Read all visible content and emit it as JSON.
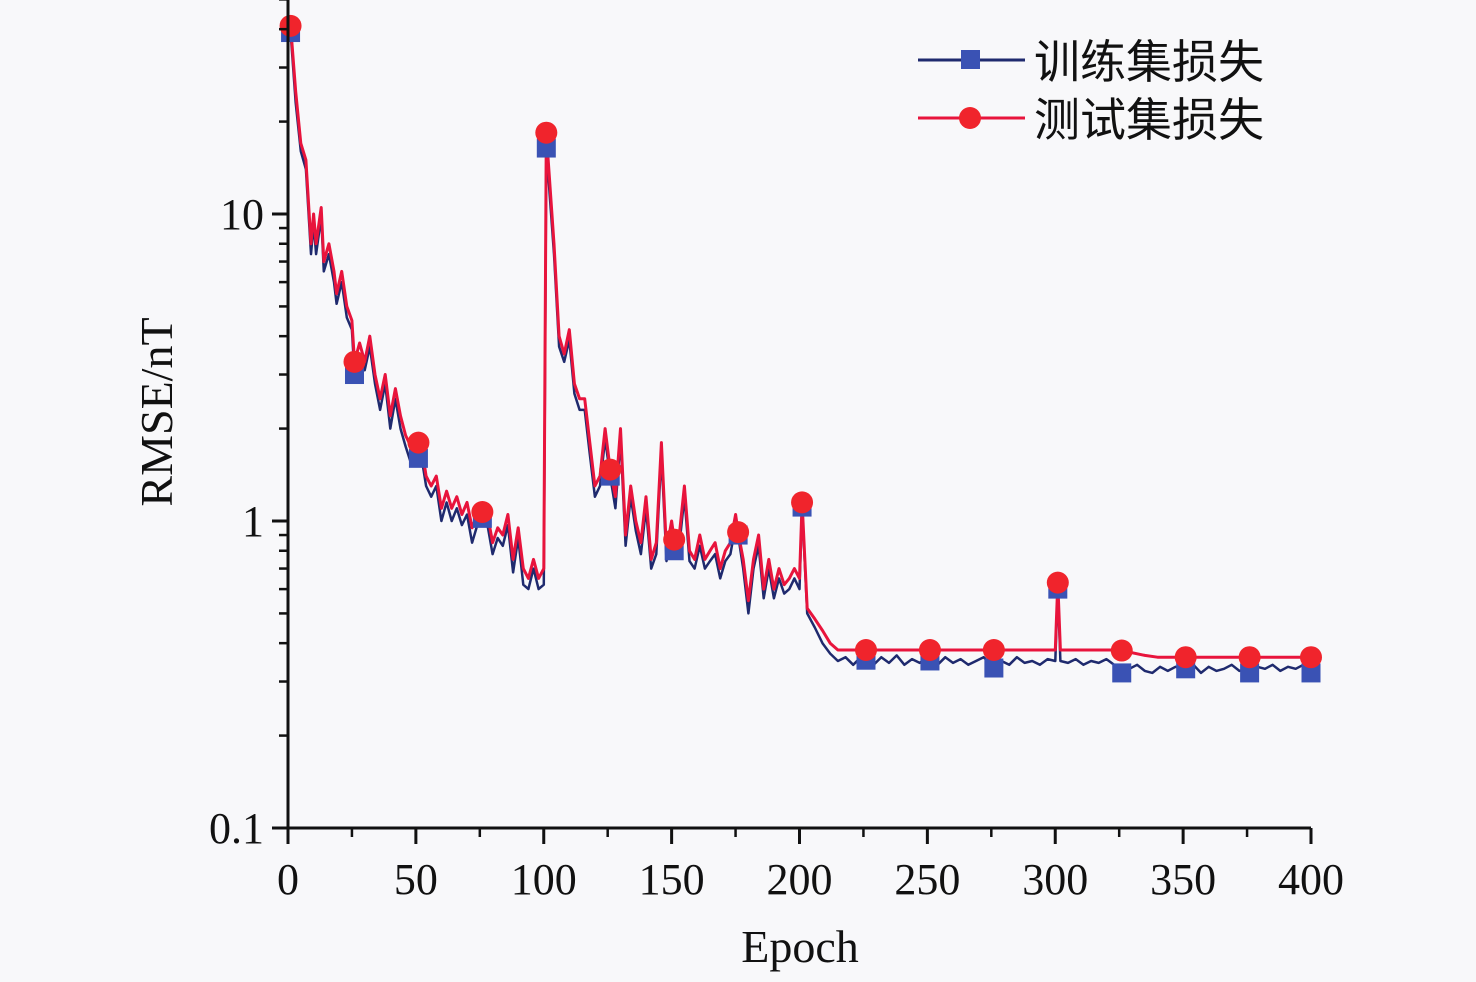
{
  "chart_data": {
    "type": "line",
    "title": "",
    "xlabel": "Epoch",
    "ylabel": "RMSE/nT",
    "xlim": [
      0,
      400
    ],
    "ylim": [
      0.1,
      50
    ],
    "yscale": "log",
    "xticks": [
      0,
      50,
      100,
      150,
      200,
      250,
      300,
      350,
      400
    ],
    "xtick_labels": [
      "0",
      "50",
      "100",
      "150",
      "200",
      "250",
      "300",
      "350",
      "400"
    ],
    "yticks": [
      0.1,
      1,
      10
    ],
    "ytick_labels": [
      "0.1",
      "1",
      "10"
    ],
    "grid": false,
    "legend_position": "top-right",
    "marker_epochs": [
      1,
      26,
      51,
      76,
      101,
      126,
      151,
      176,
      201,
      226,
      251,
      276,
      301,
      326,
      351,
      376,
      400
    ],
    "series": [
      {
        "name": "训练集损失",
        "marker": "square",
        "line_color": "#1f2a6e",
        "marker_color": "#3a52b4",
        "x": [
          0,
          1,
          3,
          5,
          7,
          9,
          10,
          11,
          13,
          14,
          16,
          18,
          19,
          21,
          23,
          25,
          26,
          28,
          30,
          32,
          34,
          36,
          38,
          40,
          42,
          44,
          46,
          48,
          50,
          51,
          52,
          54,
          56,
          58,
          60,
          62,
          64,
          66,
          68,
          70,
          72,
          74,
          76,
          78,
          80,
          82,
          84,
          86,
          88,
          90,
          92,
          94,
          96,
          98,
          100,
          101,
          104,
          106,
          108,
          110,
          112,
          114,
          116,
          118,
          120,
          122,
          124,
          126,
          128,
          130,
          132,
          134,
          136,
          138,
          140,
          142,
          144,
          146,
          148,
          150,
          151,
          153,
          155,
          157,
          159,
          161,
          163,
          165,
          167,
          169,
          171,
          173,
          175,
          176,
          178,
          180,
          182,
          184,
          186,
          188,
          190,
          192,
          194,
          196,
          198,
          200,
          201,
          203,
          206,
          209,
          212,
          215,
          218,
          221,
          224,
          226,
          229,
          232,
          235,
          238,
          241,
          244,
          247,
          250,
          251,
          254,
          257,
          260,
          263,
          266,
          269,
          272,
          275,
          276,
          279,
          282,
          285,
          288,
          291,
          294,
          297,
          300,
          301,
          302,
          305,
          308,
          311,
          314,
          317,
          320,
          323,
          326,
          329,
          332,
          335,
          338,
          341,
          344,
          347,
          350,
          351,
          354,
          357,
          360,
          363,
          366,
          369,
          372,
          375,
          376,
          379,
          382,
          385,
          388,
          391,
          394,
          397,
          400
        ],
        "values": [
          39,
          39,
          23,
          16,
          14,
          7.4,
          9.3,
          7.4,
          9.8,
          6.5,
          7.4,
          6,
          5.1,
          6,
          4.6,
          4.2,
          3.0,
          3.5,
          3.1,
          3.7,
          2.8,
          2.3,
          2.8,
          2.0,
          2.5,
          2.0,
          1.75,
          1.55,
          1.6,
          1.6,
          1.65,
          1.3,
          1.2,
          1.3,
          1.0,
          1.15,
          1.0,
          1.1,
          0.97,
          1.05,
          0.85,
          0.97,
          1.02,
          0.97,
          0.78,
          0.88,
          0.83,
          0.97,
          0.68,
          0.88,
          0.62,
          0.6,
          0.7,
          0.6,
          0.62,
          16.4,
          7.4,
          3.7,
          3.3,
          3.9,
          2.6,
          2.3,
          2.3,
          1.65,
          1.2,
          1.3,
          1.85,
          1.4,
          1.1,
          1.85,
          0.83,
          1.2,
          0.93,
          0.78,
          1.1,
          0.7,
          0.78,
          1.65,
          0.74,
          0.93,
          0.8,
          0.83,
          1.2,
          0.74,
          0.7,
          0.83,
          0.7,
          0.74,
          0.78,
          0.65,
          0.74,
          0.78,
          0.97,
          0.9,
          0.7,
          0.5,
          0.7,
          0.83,
          0.56,
          0.7,
          0.56,
          0.65,
          0.58,
          0.6,
          0.65,
          0.6,
          1.11,
          0.5,
          0.45,
          0.4,
          0.37,
          0.35,
          0.36,
          0.34,
          0.36,
          0.352,
          0.34,
          0.36,
          0.345,
          0.365,
          0.34,
          0.355,
          0.345,
          0.36,
          0.35,
          0.34,
          0.36,
          0.345,
          0.355,
          0.34,
          0.35,
          0.36,
          0.34,
          0.332,
          0.35,
          0.34,
          0.36,
          0.345,
          0.35,
          0.34,
          0.355,
          0.35,
          0.6,
          0.35,
          0.345,
          0.355,
          0.34,
          0.35,
          0.345,
          0.355,
          0.34,
          0.32,
          0.33,
          0.34,
          0.325,
          0.32,
          0.335,
          0.325,
          0.335,
          0.33,
          0.33,
          0.34,
          0.32,
          0.335,
          0.325,
          0.33,
          0.34,
          0.325,
          0.33,
          0.32,
          0.335,
          0.33,
          0.34,
          0.325,
          0.335,
          0.33,
          0.34,
          0.32
        ]
      },
      {
        "name": "测试集损失",
        "marker": "circle",
        "line_color": "#e8143c",
        "marker_color": "#f0242c",
        "x": [
          0,
          1,
          3,
          5,
          7,
          9,
          10,
          11,
          13,
          14,
          16,
          18,
          19,
          21,
          23,
          25,
          26,
          28,
          30,
          32,
          34,
          36,
          38,
          40,
          42,
          44,
          46,
          48,
          50,
          51,
          52,
          54,
          56,
          58,
          60,
          62,
          64,
          66,
          68,
          70,
          72,
          74,
          76,
          78,
          80,
          82,
          84,
          86,
          88,
          90,
          92,
          94,
          96,
          98,
          100,
          101,
          104,
          106,
          108,
          110,
          112,
          114,
          116,
          118,
          120,
          122,
          124,
          126,
          128,
          130,
          132,
          134,
          136,
          138,
          140,
          142,
          144,
          146,
          148,
          150,
          151,
          153,
          155,
          157,
          159,
          161,
          163,
          165,
          167,
          169,
          171,
          173,
          175,
          176,
          178,
          180,
          182,
          184,
          186,
          188,
          190,
          192,
          194,
          196,
          198,
          200,
          201,
          203,
          206,
          209,
          212,
          215,
          300,
          301,
          302,
          325,
          335,
          340,
          400
        ],
        "values": [
          42,
          41,
          25,
          17,
          15,
          8,
          10,
          8,
          10.5,
          7,
          8,
          6.5,
          5.5,
          6.5,
          5,
          4.5,
          3.3,
          3.8,
          3.3,
          4,
          3,
          2.5,
          3,
          2.2,
          2.7,
          2.2,
          1.9,
          1.75,
          1.8,
          1.8,
          1.8,
          1.4,
          1.3,
          1.4,
          1.1,
          1.25,
          1.1,
          1.2,
          1.05,
          1.15,
          0.95,
          1.05,
          1.07,
          1.05,
          0.85,
          0.95,
          0.9,
          1.05,
          0.75,
          0.95,
          0.7,
          0.65,
          0.75,
          0.65,
          0.7,
          18.4,
          8,
          4,
          3.5,
          4.2,
          2.8,
          2.5,
          2.5,
          1.8,
          1.3,
          1.4,
          2.0,
          1.47,
          1.2,
          2.0,
          0.9,
          1.3,
          1.0,
          0.85,
          1.2,
          0.75,
          0.85,
          1.8,
          0.8,
          1.0,
          0.87,
          0.9,
          1.3,
          0.8,
          0.75,
          0.9,
          0.75,
          0.8,
          0.85,
          0.7,
          0.8,
          0.85,
          1.05,
          0.92,
          0.75,
          0.55,
          0.75,
          0.9,
          0.6,
          0.75,
          0.6,
          0.7,
          0.62,
          0.65,
          0.7,
          0.65,
          1.15,
          0.52,
          0.48,
          0.44,
          0.4,
          0.38,
          0.38,
          0.63,
          0.38,
          0.38,
          0.365,
          0.36,
          0.36
        ]
      }
    ]
  }
}
